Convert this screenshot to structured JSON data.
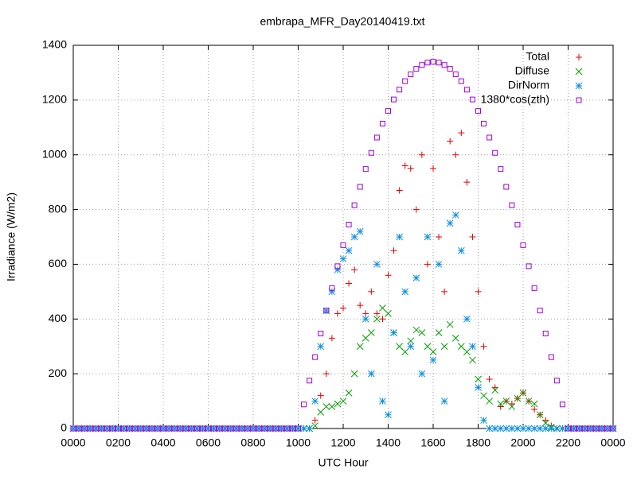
{
  "chart_data": {
    "type": "scatter",
    "title": "embrapa_MFR_Day20140419.txt",
    "xlabel": "UTC Hour",
    "ylabel": "Irradiance (W/m2)",
    "xlim": [
      0,
      24
    ],
    "ylim": [
      0,
      1400
    ],
    "xticks": [
      {
        "value": 0,
        "label": "0000"
      },
      {
        "value": 2,
        "label": "0200"
      },
      {
        "value": 4,
        "label": "0400"
      },
      {
        "value": 6,
        "label": "0600"
      },
      {
        "value": 8,
        "label": "0800"
      },
      {
        "value": 10,
        "label": "1000"
      },
      {
        "value": 12,
        "label": "1200"
      },
      {
        "value": 14,
        "label": "1400"
      },
      {
        "value": 16,
        "label": "1600"
      },
      {
        "value": 18,
        "label": "1800"
      },
      {
        "value": 20,
        "label": "2000"
      },
      {
        "value": 22,
        "label": "2200"
      },
      {
        "value": 24,
        "label": "0000"
      }
    ],
    "yticks": [
      0,
      200,
      400,
      600,
      800,
      1000,
      1200,
      1400
    ],
    "grid": true,
    "legend": "top-right",
    "x": [
      0,
      0.25,
      0.5,
      0.75,
      1,
      1.25,
      1.5,
      1.75,
      2,
      2.25,
      2.5,
      2.75,
      3,
      3.25,
      3.5,
      3.75,
      4,
      4.25,
      4.5,
      4.75,
      5,
      5.25,
      5.5,
      5.75,
      6,
      6.25,
      6.5,
      6.75,
      7,
      7.25,
      7.5,
      7.75,
      8,
      8.25,
      8.5,
      8.75,
      9,
      9.25,
      9.5,
      9.75,
      10,
      10.25,
      10.5,
      10.75,
      11,
      11.25,
      11.5,
      11.75,
      12,
      12.25,
      12.5,
      12.75,
      13,
      13.25,
      13.5,
      13.75,
      14,
      14.25,
      14.5,
      14.75,
      15,
      15.25,
      15.5,
      15.75,
      16,
      16.25,
      16.5,
      16.75,
      17,
      17.25,
      17.5,
      17.75,
      18,
      18.25,
      18.5,
      18.75,
      19,
      19.25,
      19.5,
      19.75,
      20,
      20.25,
      20.5,
      20.75,
      21,
      21.25,
      21.5,
      21.75,
      22,
      22.25,
      22.5,
      22.75,
      23,
      23.25,
      23.5,
      23.75,
      24
    ],
    "series": [
      {
        "name": "Total",
        "color": "#e00000",
        "marker": "plus",
        "values": [
          0,
          0,
          0,
          0,
          0,
          0,
          0,
          0,
          0,
          0,
          0,
          0,
          0,
          0,
          0,
          0,
          0,
          0,
          0,
          0,
          0,
          0,
          0,
          0,
          0,
          0,
          0,
          0,
          0,
          0,
          0,
          0,
          0,
          0,
          0,
          0,
          0,
          0,
          0,
          0,
          0,
          0,
          0,
          30,
          120,
          200,
          330,
          420,
          440,
          530,
          580,
          450,
          420,
          500,
          420,
          400,
          560,
          650,
          870,
          960,
          950,
          800,
          1000,
          600,
          950,
          700,
          500,
          1050,
          1000,
          1080,
          900,
          700,
          500,
          300,
          180,
          150,
          80,
          100,
          90,
          110,
          130,
          100,
          70,
          50,
          30,
          10,
          0,
          0,
          0,
          0,
          0,
          0,
          0,
          0,
          0,
          0,
          0
        ]
      },
      {
        "name": "Diffuse",
        "color": "#00a000",
        "marker": "cross",
        "values": [
          0,
          0,
          0,
          0,
          0,
          0,
          0,
          0,
          0,
          0,
          0,
          0,
          0,
          0,
          0,
          0,
          0,
          0,
          0,
          0,
          0,
          0,
          0,
          0,
          0,
          0,
          0,
          0,
          0,
          0,
          0,
          0,
          0,
          0,
          0,
          0,
          0,
          0,
          0,
          0,
          0,
          0,
          0,
          10,
          60,
          80,
          80,
          90,
          100,
          130,
          200,
          300,
          330,
          350,
          400,
          440,
          420,
          350,
          300,
          280,
          320,
          360,
          350,
          300,
          280,
          350,
          300,
          380,
          330,
          300,
          280,
          250,
          180,
          120,
          100,
          140,
          90,
          100,
          80,
          110,
          130,
          100,
          90,
          50,
          20,
          5,
          0,
          0,
          0,
          0,
          0,
          0,
          0,
          0,
          0,
          0,
          0
        ]
      },
      {
        "name": "DirNorm",
        "color": "#1090e0",
        "marker": "star",
        "values": [
          0,
          0,
          0,
          0,
          0,
          0,
          0,
          0,
          0,
          0,
          0,
          0,
          0,
          0,
          0,
          0,
          0,
          0,
          0,
          0,
          0,
          0,
          0,
          0,
          0,
          0,
          0,
          0,
          0,
          0,
          0,
          0,
          0,
          0,
          0,
          0,
          0,
          0,
          0,
          0,
          0,
          0,
          0,
          100,
          300,
          430,
          500,
          580,
          620,
          650,
          700,
          720,
          400,
          200,
          600,
          100,
          50,
          350,
          700,
          500,
          300,
          550,
          200,
          700,
          250,
          600,
          100,
          750,
          780,
          650,
          400,
          300,
          150,
          30,
          0,
          0,
          0,
          0,
          0,
          0,
          0,
          0,
          0,
          0,
          0,
          0,
          0,
          0,
          0,
          0,
          0,
          0,
          0,
          0,
          0,
          0,
          0
        ]
      },
      {
        "name": "1380*cos(zth)",
        "color": "#a000e0",
        "marker": "square",
        "values": [
          0,
          0,
          0,
          0,
          0,
          0,
          0,
          0,
          0,
          0,
          0,
          0,
          0,
          0,
          0,
          0,
          0,
          0,
          0,
          0,
          0,
          0,
          0,
          0,
          0,
          0,
          0,
          0,
          0,
          0,
          0,
          0,
          0,
          0,
          0,
          0,
          0,
          0,
          0,
          0,
          0,
          88,
          175,
          261,
          347,
          431,
          513,
          593,
          670,
          745,
          816,
          883,
          948,
          1007,
          1063,
          1114,
          1160,
          1202,
          1238,
          1269,
          1294,
          1314,
          1328,
          1337,
          1340,
          1337,
          1328,
          1314,
          1294,
          1269,
          1238,
          1202,
          1160,
          1114,
          1063,
          1007,
          948,
          883,
          816,
          745,
          670,
          593,
          513,
          431,
          347,
          261,
          175,
          88,
          0,
          0,
          0,
          0,
          0,
          0,
          0,
          0,
          0
        ]
      }
    ]
  }
}
